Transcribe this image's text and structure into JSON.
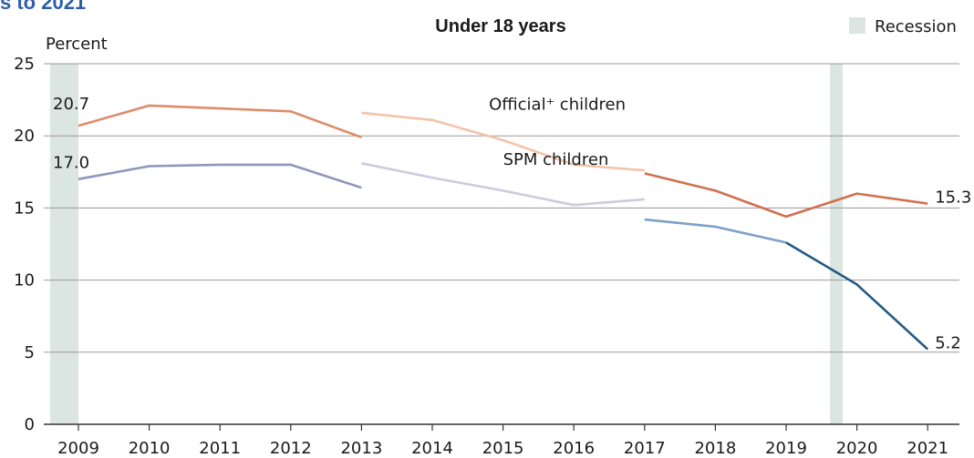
{
  "cut_title": "s to 2021",
  "chart_data": {
    "type": "line",
    "title": "Under 18 years",
    "ylabel": "Percent",
    "ylim": [
      0,
      25
    ],
    "yticks": [
      0,
      5,
      10,
      15,
      20,
      25
    ],
    "x": [
      2009,
      2010,
      2011,
      2012,
      2013,
      2014,
      2015,
      2016,
      2017,
      2018,
      2019,
      2020,
      2021
    ],
    "legend": {
      "label": "Recession",
      "color": "#dbe5e1",
      "placement": "top-right"
    },
    "recessions": [
      {
        "start": 2008.6,
        "end": 2009.0
      },
      {
        "start": 2019.62,
        "end": 2019.8
      }
    ],
    "series": [
      {
        "name": "Official+ children",
        "segment": "official-early",
        "color": "#de8c6a",
        "points": [
          [
            2009,
            20.7
          ],
          [
            2010,
            22.1
          ],
          [
            2011,
            21.9
          ],
          [
            2012,
            21.7
          ],
          [
            2013,
            19.9
          ]
        ]
      },
      {
        "name": "Official+ children",
        "segment": "official-mid",
        "color": "#f2c4a9",
        "points": [
          [
            2013,
            21.6
          ],
          [
            2014,
            21.1
          ],
          [
            2015,
            19.7
          ],
          [
            2016,
            18.0
          ],
          [
            2017,
            17.6
          ]
        ]
      },
      {
        "name": "Official+ children",
        "segment": "official-late",
        "color": "#d26f4f",
        "points": [
          [
            2017,
            17.4
          ],
          [
            2018,
            16.2
          ],
          [
            2019,
            14.4
          ],
          [
            2020,
            16.0
          ],
          [
            2021,
            15.3
          ]
        ]
      },
      {
        "name": "SPM children",
        "segment": "spm-early",
        "color": "#8f97ba",
        "points": [
          [
            2009,
            17.0
          ],
          [
            2010,
            17.9
          ],
          [
            2011,
            18.0
          ],
          [
            2012,
            18.0
          ],
          [
            2013,
            16.4
          ]
        ]
      },
      {
        "name": "SPM children",
        "segment": "spm-mid",
        "color": "#cdcbdd",
        "points": [
          [
            2013,
            18.1
          ],
          [
            2014,
            17.1
          ],
          [
            2015,
            16.2
          ],
          [
            2016,
            15.2
          ],
          [
            2017,
            15.6
          ]
        ]
      },
      {
        "name": "SPM children",
        "segment": "spm-late",
        "color": "#7ba1c6",
        "points": [
          [
            2017,
            14.2
          ],
          [
            2018,
            13.7
          ],
          [
            2019,
            12.6
          ]
        ]
      },
      {
        "name": "SPM children",
        "segment": "spm-final",
        "color": "#245a84",
        "points": [
          [
            2019,
            12.6
          ],
          [
            2020,
            9.7
          ],
          [
            2021,
            5.2
          ]
        ]
      }
    ],
    "annotations": [
      {
        "text": "20.7",
        "x": 2009,
        "y": 20.7
      },
      {
        "text": "17.0",
        "x": 2009,
        "y": 17.0
      },
      {
        "text": "15.3",
        "x": 2021,
        "y": 15.3
      },
      {
        "text": "5.2",
        "x": 2021,
        "y": 5.2
      },
      {
        "text": "Official⁺ children",
        "x": 2014.8,
        "y": 21.8
      },
      {
        "text": "SPM children",
        "x": 2015.0,
        "y": 18.0
      }
    ]
  }
}
